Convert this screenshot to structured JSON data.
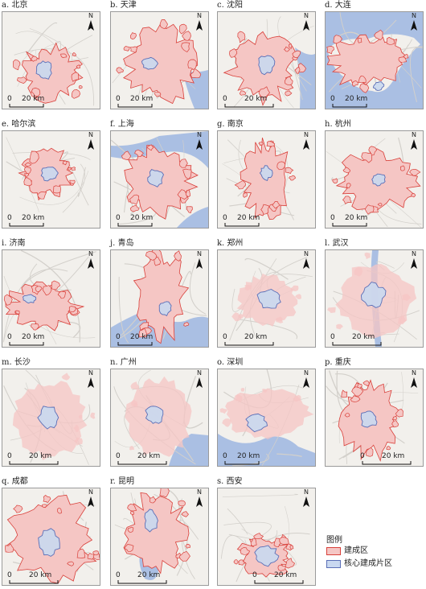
{
  "panels": [
    {
      "title": "a. 北京",
      "scale_label": "20 km",
      "zero": "0",
      "north": "N",
      "style": "outline"
    },
    {
      "title": "b. 天津",
      "scale_label": "20 km",
      "zero": "0",
      "north": "N",
      "style": "outline"
    },
    {
      "title": "c. 沈阳",
      "scale_label": "20 km",
      "zero": "0",
      "north": "N",
      "style": "outline"
    },
    {
      "title": "d. 大连",
      "scale_label": "20 km",
      "zero": "0",
      "north": "N",
      "style": "outline"
    },
    {
      "title": "e. 哈尔滨",
      "scale_label": "20 km",
      "zero": "0",
      "north": "N",
      "style": "outline"
    },
    {
      "title": "f. 上海",
      "scale_label": "20 km",
      "zero": "0",
      "north": "N",
      "style": "outline"
    },
    {
      "title": "g. 南京",
      "scale_label": "20 km",
      "zero": "0",
      "north": "N",
      "style": "outline"
    },
    {
      "title": "h. 杭州",
      "scale_label": "20 km",
      "zero": "0",
      "north": "N",
      "style": "outline"
    },
    {
      "title": "i. 济南",
      "scale_label": "20 km",
      "zero": "0",
      "north": "N",
      "style": "outline"
    },
    {
      "title": "j. 青岛",
      "scale_label": "20 km",
      "zero": "0",
      "north": "N",
      "style": "outline"
    },
    {
      "title": "k. 郑州",
      "scale_label": "20 km",
      "zero": "0",
      "north": "N",
      "style": "soft"
    },
    {
      "title": "l. 武汉",
      "scale_label": "20 km",
      "zero": "0",
      "north": "N",
      "style": "soft"
    },
    {
      "title": "m. 长沙",
      "scale_label": "20 km",
      "zero": "0",
      "north": "N",
      "style": "soft"
    },
    {
      "title": "n. 广州",
      "scale_label": "20 km",
      "zero": "0",
      "north": "N",
      "style": "soft"
    },
    {
      "title": "o. 深圳",
      "scale_label": "20 km",
      "zero": "0",
      "north": "N",
      "style": "soft"
    },
    {
      "title": "p. 重庆",
      "scale_label": "20 km",
      "zero": "0",
      "north": "N",
      "style": "outline"
    },
    {
      "title": "q. 成都",
      "scale_label": "20 km",
      "zero": "0",
      "north": "N",
      "style": "outline"
    },
    {
      "title": "r. 昆明",
      "scale_label": "20 km",
      "zero": "0",
      "north": "N",
      "style": "outline"
    },
    {
      "title": "s. 西安",
      "scale_label": "20 km",
      "zero": "0",
      "north": "N",
      "style": "outline"
    }
  ],
  "legend": {
    "title": "图例",
    "items": [
      {
        "label": "建成区",
        "fill": "#f5c6c4",
        "stroke": "#d9403a"
      },
      {
        "label": "核心建成片区",
        "fill": "#c9d8f0",
        "stroke": "#5b6fb7"
      }
    ]
  },
  "colors": {
    "land": "#f2f0ec",
    "water": "#aabfe3",
    "road": "#d3d0cb",
    "built_fill": "#f5c6c4",
    "built_stroke": "#d9403a",
    "core_fill": "#c9d8f0",
    "core_stroke": "#5b6fb7"
  }
}
